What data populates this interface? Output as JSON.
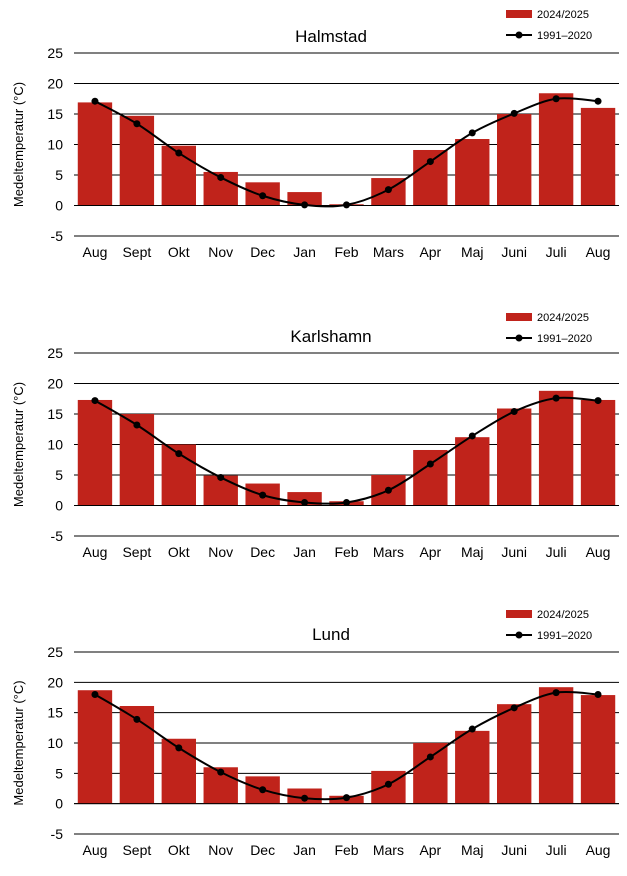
{
  "colors": {
    "bar": "#c0231b",
    "line": "#000000",
    "grid": "#000000"
  },
  "chart_data": [
    {
      "type": "bar",
      "title": "Halmstad",
      "ylabel": "Medeltemperatur (°C)",
      "ylim": [
        -5,
        25
      ],
      "yticks": [
        -5,
        0,
        5,
        10,
        15,
        20,
        25
      ],
      "grid": true,
      "legend": "top-right",
      "categories": [
        "Aug",
        "Sept",
        "Okt",
        "Nov",
        "Dec",
        "Jan",
        "Feb",
        "Mars",
        "Apr",
        "Maj",
        "Juni",
        "Juli",
        "Aug"
      ],
      "series": [
        {
          "name": "2024/2025",
          "type": "bar",
          "values": [
            16.9,
            14.7,
            9.8,
            5.5,
            3.8,
            2.2,
            0.2,
            4.5,
            9.1,
            10.9,
            15.0,
            18.4,
            16.0
          ]
        },
        {
          "name": "1991–2020",
          "type": "line",
          "values": [
            17.1,
            13.4,
            8.6,
            4.6,
            1.6,
            0.1,
            0.1,
            2.6,
            7.2,
            11.9,
            15.1,
            17.5,
            17.1
          ]
        }
      ]
    },
    {
      "type": "bar",
      "title": "Karlshamn",
      "ylabel": "Medeltemperatur (°C)",
      "ylim": [
        -5,
        25
      ],
      "yticks": [
        -5,
        0,
        5,
        10,
        15,
        20,
        25
      ],
      "grid": true,
      "legend": "top-right",
      "categories": [
        "Aug",
        "Sept",
        "Okt",
        "Nov",
        "Dec",
        "Jan",
        "Feb",
        "Mars",
        "Apr",
        "Maj",
        "Juni",
        "Juli",
        "Aug"
      ],
      "series": [
        {
          "name": "2024/2025",
          "type": "bar",
          "values": [
            17.3,
            15.0,
            10.0,
            4.9,
            3.6,
            2.2,
            0.7,
            5.0,
            9.1,
            11.2,
            15.9,
            18.8,
            17.3
          ]
        },
        {
          "name": "1991–2020",
          "type": "line",
          "values": [
            17.2,
            13.2,
            8.5,
            4.6,
            1.7,
            0.5,
            0.5,
            2.5,
            6.8,
            11.4,
            15.4,
            17.6,
            17.2
          ]
        }
      ]
    },
    {
      "type": "bar",
      "title": "Lund",
      "ylabel": "Medeltemperatur (°C)",
      "ylim": [
        -5,
        25
      ],
      "yticks": [
        -5,
        0,
        5,
        10,
        15,
        20,
        25
      ],
      "grid": true,
      "legend": "top-right",
      "categories": [
        "Aug",
        "Sept",
        "Okt",
        "Nov",
        "Dec",
        "Jan",
        "Feb",
        "Mars",
        "Apr",
        "Maj",
        "Juni",
        "Juli",
        "Aug"
      ],
      "series": [
        {
          "name": "2024/2025",
          "type": "bar",
          "values": [
            18.7,
            16.1,
            10.7,
            6.0,
            4.5,
            2.5,
            1.3,
            5.4,
            10.0,
            12.0,
            16.4,
            19.2,
            17.9
          ]
        },
        {
          "name": "1991–2020",
          "type": "line",
          "values": [
            18.0,
            13.9,
            9.2,
            5.2,
            2.3,
            0.9,
            1.0,
            3.2,
            7.7,
            12.3,
            15.8,
            18.3,
            18.0
          ]
        }
      ]
    }
  ]
}
